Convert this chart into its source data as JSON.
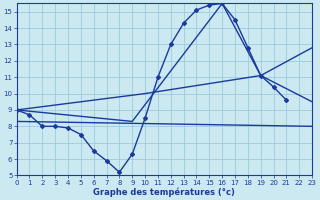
{
  "xlabel": "Graphe des températures (°c)",
  "xlim": [
    0,
    23
  ],
  "ylim": [
    5,
    15.5
  ],
  "yticks": [
    5,
    6,
    7,
    8,
    9,
    10,
    11,
    12,
    13,
    14,
    15
  ],
  "xticks": [
    0,
    1,
    2,
    3,
    4,
    5,
    6,
    7,
    8,
    9,
    10,
    11,
    12,
    13,
    14,
    15,
    16,
    17,
    18,
    19,
    20,
    21,
    22,
    23
  ],
  "background_color": "#cce8f0",
  "grid_color": "#99ccdd",
  "line_color": "#1a3a9c",
  "series_main": {
    "x": [
      0,
      1,
      2,
      3,
      4,
      5,
      6,
      7,
      8,
      9,
      10,
      11,
      12,
      13,
      14,
      15,
      16,
      17,
      18,
      19,
      20,
      21
    ],
    "y": [
      9.0,
      8.7,
      8.0,
      8.0,
      7.9,
      7.5,
      6.5,
      5.9,
      5.2,
      6.3,
      8.5,
      11.0,
      13.0,
      14.3,
      15.1,
      15.4,
      15.5,
      14.5,
      12.8,
      11.1,
      10.4,
      9.6
    ]
  },
  "series_flat": {
    "x": [
      0,
      23
    ],
    "y": [
      8.3,
      8.0
    ]
  },
  "series_triangle": {
    "x": [
      0,
      9,
      16,
      19,
      23
    ],
    "y": [
      9.0,
      8.3,
      15.5,
      11.1,
      9.5
    ]
  },
  "series_diag": {
    "x": [
      0,
      10,
      19,
      23
    ],
    "y": [
      9.0,
      10.0,
      11.1,
      12.8
    ]
  }
}
